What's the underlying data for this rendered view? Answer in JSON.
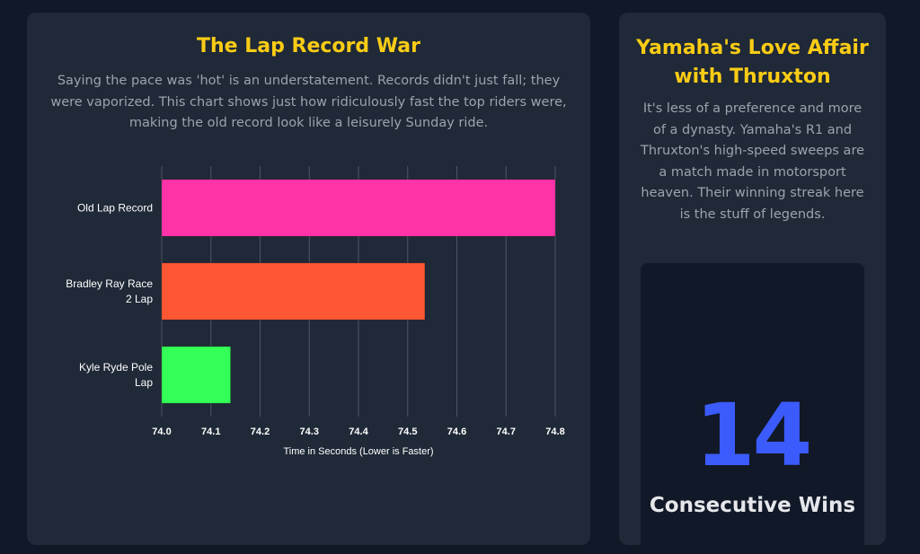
{
  "left_card": {
    "title": "The Lap Record War",
    "description": "Saying the pace was 'hot' is an understatement. Records didn't just fall; they were vaporized. This chart shows just how ridiculously fast the top riders were, making the old record look like a leisurely Sunday ride."
  },
  "right_card": {
    "title": "Yamaha's Love Affair with Thruxton",
    "description": "It's less of a preference and more of a dynasty. Yamaha's R1 and Thruxton's high-speed sweeps are a match made in motorsport heaven. Their winning streak here is the stuff of legends.",
    "stat_value": "14",
    "stat_label": "Consecutive Wins",
    "stat_color": "#3b5bfd"
  },
  "chart_data": {
    "type": "bar",
    "orientation": "horizontal",
    "categories": [
      "Old Lap Record",
      "Bradley Ray Race 2 Lap",
      "Kyle Ryde Pole Lap"
    ],
    "category_lines": [
      [
        "Old Lap Record"
      ],
      [
        "Bradley Ray Race",
        "2 Lap"
      ],
      [
        "Kyle Ryde Pole",
        "Lap"
      ]
    ],
    "values": [
      74.8,
      74.535,
      74.14
    ],
    "colors": [
      "#ff33a8",
      "#ff5733",
      "#33ff57"
    ],
    "xlabel": "Time in Seconds (Lower is Faster)",
    "xlim": [
      74.0,
      74.8
    ],
    "xticks": [
      "74.0",
      "74.1",
      "74.2",
      "74.3",
      "74.4",
      "74.5",
      "74.6",
      "74.7",
      "74.8"
    ],
    "grid": true
  }
}
